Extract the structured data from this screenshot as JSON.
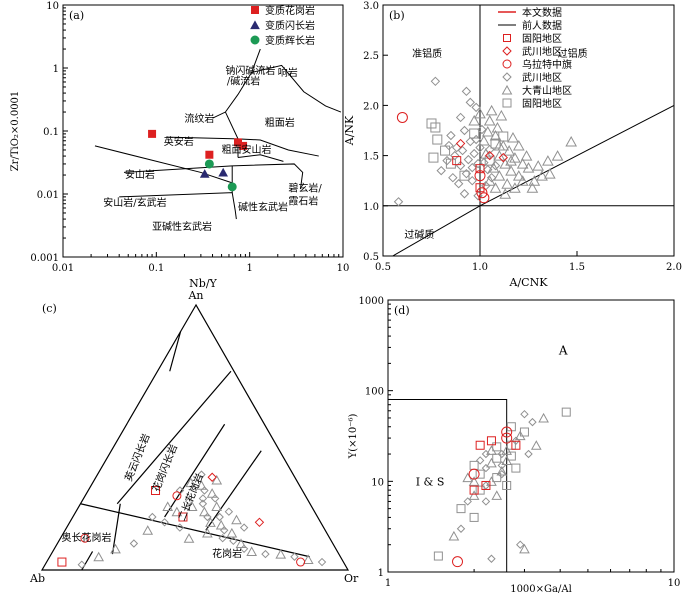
{
  "colors": {
    "red": "#dd2020",
    "navy": "#2a2a70",
    "green": "#1c9a55",
    "gray": "#909090",
    "black": "#000000"
  },
  "chart_data": [
    {
      "panel": "(a)",
      "type": "scatter",
      "xlabel": "Nb/Y",
      "ylabel": "Zr/TiO₂×0.0001",
      "xlim": [
        0.01,
        10
      ],
      "ylim": [
        0.001,
        10
      ],
      "xscale": "log",
      "yscale": "log",
      "xticks": [
        "0.01",
        "0.1",
        "1",
        "10"
      ],
      "yticks": [
        "0.001",
        "0.01",
        "0.1",
        "1",
        "10"
      ],
      "legend": [
        "变质花岗岩",
        "变质闪长岩",
        "变质辉长岩"
      ],
      "field_labels": [
        "钠闪碱流岩 /碱流岩",
        "响岩",
        "流纹岩",
        "英安岩",
        "粗面岩",
        "粗面安山岩",
        "安山岩",
        "安山岩/玄武岩",
        "碱性玄武岩",
        "碧玄岩/ 霞石岩",
        "亚碱性玄武岩"
      ],
      "series": [
        {
          "name": "变质花岗岩",
          "points": [
            [
              0.09,
              0.09
            ],
            [
              0.37,
              0.042
            ],
            [
              0.75,
              0.066
            ],
            [
              0.85,
              0.058
            ]
          ]
        },
        {
          "name": "变质闪长岩",
          "points": [
            [
              0.33,
              0.021
            ],
            [
              0.52,
              0.022
            ]
          ]
        },
        {
          "name": "变质辉长岩",
          "points": [
            [
              0.37,
              0.03
            ],
            [
              0.65,
              0.013
            ]
          ]
        }
      ]
    },
    {
      "panel": "(b)",
      "type": "scatter",
      "xlabel": "A/CNK",
      "ylabel": "A/NK",
      "xlim": [
        0.5,
        2.0
      ],
      "ylim": [
        0.5,
        3.0
      ],
      "xticks": [
        "0.5",
        "1.0",
        "1.5",
        "2.0"
      ],
      "yticks": [
        "0.5",
        "1.0",
        "1.5",
        "2.0",
        "2.5",
        "3.0"
      ],
      "field_labels": [
        "准铝质",
        "过铝质",
        "过碱质"
      ],
      "legend": [
        "本文数据",
        "前人数据",
        "固阳地区",
        "武川地区",
        "乌拉特中旗",
        "武川地区",
        "大青山地区",
        "固阳地区"
      ],
      "series": [
        {
          "name": "乌拉特中旗",
          "points": [
            [
              0.6,
              1.88
            ],
            [
              1.0,
              1.3
            ],
            [
              1.01,
              1.13
            ],
            [
              1.02,
              1.08
            ]
          ]
        },
        {
          "name": "固阳地区",
          "points": [
            [
              0.88,
              1.45
            ],
            [
              1.0,
              1.18
            ],
            [
              1.0,
              1.37
            ]
          ]
        },
        {
          "name": "武川地区",
          "points": [
            [
              0.9,
              1.62
            ],
            [
              1.05,
              1.5
            ],
            [
              1.12,
              1.48
            ]
          ]
        },
        {
          "name": "前人数据-固阳地区",
          "points": [
            [
              0.75,
              1.82
            ],
            [
              0.77,
              1.78
            ],
            [
              0.78,
              1.66
            ],
            [
              0.76,
              1.48
            ],
            [
              0.82,
              1.55
            ],
            [
              0.85,
              1.42
            ],
            [
              0.92,
              1.3
            ],
            [
              0.97,
              1.72
            ],
            [
              1.05,
              1.45
            ],
            [
              1.08,
              1.62
            ],
            [
              1.12,
              1.69
            ]
          ]
        },
        {
          "name": "前人数据-武川地区",
          "points": [
            [
              0.77,
              2.24
            ],
            [
              0.58,
              1.04
            ],
            [
              0.9,
              1.88
            ],
            [
              0.93,
              2.14
            ],
            [
              0.95,
              2.03
            ],
            [
              0.98,
              1.98
            ],
            [
              0.85,
              1.7
            ],
            [
              0.88,
              1.58
            ],
            [
              0.92,
              1.75
            ],
            [
              0.95,
              1.64
            ],
            [
              0.97,
              1.52
            ],
            [
              0.9,
              1.4
            ],
            [
              0.93,
              1.32
            ],
            [
              0.96,
              1.25
            ],
            [
              0.99,
              1.1
            ],
            [
              1.0,
              1.58
            ],
            [
              1.02,
              1.43
            ],
            [
              1.04,
              1.36
            ],
            [
              1.06,
              1.28
            ],
            [
              0.86,
              1.28
            ],
            [
              0.8,
              1.35
            ],
            [
              0.94,
              1.46
            ],
            [
              0.98,
              1.66
            ],
            [
              1.03,
              1.2
            ],
            [
              1.08,
              1.4
            ],
            [
              0.91,
              1.55
            ],
            [
              0.84,
              1.6
            ],
            [
              0.87,
              1.5
            ],
            [
              0.96,
              1.38
            ],
            [
              0.89,
              1.22
            ],
            [
              0.99,
              1.42
            ],
            [
              1.01,
              1.76
            ],
            [
              0.92,
              1.12
            ],
            [
              0.83,
              1.45
            ],
            [
              1.05,
              1.56
            ]
          ]
        },
        {
          "name": "前人数据-大青山地区",
          "points": [
            [
              1.0,
              1.92
            ],
            [
              1.05,
              1.85
            ],
            [
              1.08,
              1.7
            ],
            [
              1.12,
              1.6
            ],
            [
              1.15,
              1.55
            ],
            [
              1.18,
              1.48
            ],
            [
              1.2,
              1.6
            ],
            [
              1.1,
              1.5
            ],
            [
              1.13,
              1.42
            ],
            [
              1.16,
              1.35
            ],
            [
              1.2,
              1.3
            ],
            [
              1.25,
              1.38
            ],
            [
              1.3,
              1.4
            ],
            [
              1.35,
              1.45
            ],
            [
              1.4,
              1.5
            ],
            [
              1.47,
              1.64
            ],
            [
              1.07,
              1.38
            ],
            [
              1.1,
              1.3
            ],
            [
              1.14,
              1.22
            ],
            [
              1.18,
              1.18
            ],
            [
              1.22,
              1.25
            ],
            [
              1.28,
              1.25
            ],
            [
              1.32,
              1.3
            ],
            [
              1.05,
              1.25
            ],
            [
              1.08,
              1.18
            ],
            [
              1.02,
              1.65
            ],
            [
              1.04,
              1.74
            ],
            [
              1.09,
              1.78
            ],
            [
              1.11,
              1.9
            ],
            [
              1.06,
              1.95
            ],
            [
              0.97,
              1.85
            ],
            [
              1.24,
              1.5
            ],
            [
              1.17,
              1.68
            ],
            [
              1.03,
              1.52
            ],
            [
              1.13,
              1.12
            ],
            [
              1.27,
              1.18
            ],
            [
              1.36,
              1.32
            ],
            [
              1.22,
              1.42
            ],
            [
              1.1,
              1.6
            ],
            [
              1.16,
              1.45
            ]
          ]
        }
      ]
    },
    {
      "panel": "(c)",
      "type": "ternary",
      "apices": [
        "An",
        "Ab",
        "Or"
      ],
      "field_labels": [
        "英云闪长岩",
        "花岗闪长岩",
        "二长花岗岩",
        "奥长花岗岩",
        "花岗岩"
      ],
      "series": [
        {
          "name": "本文数据",
          "points": [
            [
              0.05,
              0.03
            ],
            [
              0.08,
              0.12
            ],
            [
              0.38,
              0.35
            ],
            [
              0.22,
              0.3
            ],
            [
              0.3,
              0.28
            ],
            [
              0.62,
              0.18
            ],
            [
              0.36,
              0.2
            ],
            [
              0.83,
              0.03
            ]
          ]
        },
        {
          "name": "前人数据",
          "points": [
            [
              0.3,
              0.3
            ],
            [
              0.32,
              0.33
            ],
            [
              0.34,
              0.36
            ],
            [
              0.36,
              0.32
            ],
            [
              0.38,
              0.3
            ],
            [
              0.4,
              0.34
            ],
            [
              0.35,
              0.26
            ],
            [
              0.37,
              0.24
            ],
            [
              0.4,
              0.25
            ],
            [
              0.42,
              0.22
            ],
            [
              0.44,
              0.2
            ],
            [
              0.46,
              0.18
            ],
            [
              0.48,
              0.2
            ],
            [
              0.5,
              0.17
            ],
            [
              0.52,
              0.15
            ],
            [
              0.45,
              0.24
            ],
            [
              0.43,
              0.27
            ],
            [
              0.41,
              0.29
            ],
            [
              0.39,
              0.27
            ],
            [
              0.47,
              0.14
            ],
            [
              0.53,
              0.12
            ],
            [
              0.55,
              0.14
            ],
            [
              0.57,
              0.11
            ],
            [
              0.6,
              0.1
            ],
            [
              0.62,
              0.08
            ],
            [
              0.65,
              0.07
            ],
            [
              0.7,
              0.06
            ],
            [
              0.75,
              0.06
            ],
            [
              0.8,
              0.05
            ],
            [
              0.85,
              0.04
            ],
            [
              0.9,
              0.03
            ],
            [
              0.33,
              0.22
            ],
            [
              0.31,
              0.18
            ],
            [
              0.27,
              0.15
            ],
            [
              0.25,
              0.1
            ],
            [
              0.2,
              0.08
            ],
            [
              0.5,
              0.22
            ],
            [
              0.54,
              0.19
            ],
            [
              0.58,
              0.16
            ],
            [
              0.29,
              0.24
            ],
            [
              0.26,
              0.2
            ],
            [
              0.42,
              0.12
            ],
            [
              0.37,
              0.16
            ],
            [
              0.16,
              0.05
            ],
            [
              0.12,
              0.02
            ]
          ]
        }
      ]
    },
    {
      "panel": "(d)",
      "type": "scatter",
      "xlabel": "1000×Ga/Al",
      "ylabel": "Y(×10⁻⁶)",
      "xscale": "log",
      "yscale": "log",
      "xlim": [
        1,
        10
      ],
      "ylim": [
        1,
        1000
      ],
      "xticks": [
        "1",
        "10"
      ],
      "yticks": [
        "1",
        "10",
        "100",
        "1000"
      ],
      "field_labels": [
        "A",
        "I & S"
      ],
      "series": [
        {
          "name": "本文数据",
          "points": [
            [
              2.1,
              25
            ],
            [
              2.0,
              12
            ],
            [
              2.3,
              28
            ],
            [
              2.6,
              35
            ],
            [
              2.8,
              25
            ],
            [
              2.6,
              30
            ],
            [
              2.2,
              9
            ],
            [
              1.75,
              1.3
            ],
            [
              2.0,
              8
            ]
          ]
        },
        {
          "name": "前人数据",
          "points": [
            [
              1.8,
              5
            ],
            [
              1.9,
              6
            ],
            [
              2.0,
              7
            ],
            [
              2.1,
              8
            ],
            [
              2.2,
              9
            ],
            [
              2.3,
              10
            ],
            [
              2.4,
              11
            ],
            [
              2.5,
              12
            ],
            [
              2.0,
              10
            ],
            [
              2.1,
              12
            ],
            [
              2.2,
              14
            ],
            [
              2.3,
              16
            ],
            [
              2.4,
              18
            ],
            [
              2.5,
              20
            ],
            [
              2.6,
              22
            ],
            [
              2.7,
              25
            ],
            [
              2.8,
              28
            ],
            [
              2.9,
              32
            ],
            [
              3.0,
              35
            ],
            [
              3.2,
              45
            ],
            [
              3.5,
              50
            ],
            [
              4.2,
              58
            ],
            [
              2.2,
              20
            ],
            [
              2.3,
              22
            ],
            [
              2.4,
              24
            ],
            [
              2.5,
              15
            ],
            [
              2.6,
              17
            ],
            [
              2.7,
              19
            ],
            [
              2.1,
              17
            ],
            [
              1.9,
              11
            ],
            [
              2.0,
              15
            ],
            [
              2.2,
              6
            ],
            [
              2.4,
              7
            ],
            [
              2.6,
              9
            ],
            [
              1.8,
              3
            ],
            [
              1.7,
              2.5
            ],
            [
              2.0,
              4
            ],
            [
              2.9,
              2
            ],
            [
              3.0,
              1.8
            ],
            [
              1.5,
              1.5
            ],
            [
              2.3,
              1.4
            ],
            [
              2.5,
              13
            ],
            [
              2.8,
              14
            ],
            [
              3.1,
              20
            ],
            [
              3.3,
              25
            ],
            [
              2.7,
              40
            ],
            [
              3.0,
              55
            ]
          ]
        }
      ]
    }
  ]
}
